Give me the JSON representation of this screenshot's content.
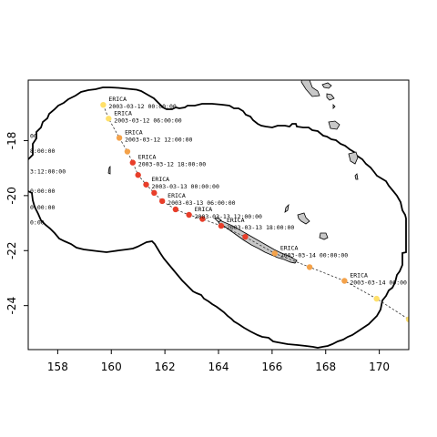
{
  "map": {
    "x_ticks": [
      "158",
      "160",
      "162",
      "164",
      "166",
      "168",
      "170"
    ],
    "y_ticks": [
      "-18",
      "-20",
      "-22",
      "-24"
    ],
    "x_tick_values": [
      158,
      160,
      162,
      164,
      166,
      168,
      170
    ],
    "y_tick_values": [
      -18,
      -20,
      -22,
      -24
    ],
    "xlim": [
      156.9,
      171.1
    ],
    "ylim": [
      -25.6,
      -15.8
    ],
    "colors": {
      "boundary": "#000000",
      "land": "#c8c8c8",
      "track": "#333333",
      "point_strong": "#e83e2a",
      "point_mid": "#f4a24a",
      "point_weak": "#ffe06a"
    }
  },
  "chart_data": {
    "type": "scatter",
    "title": "",
    "xlabel": "",
    "ylabel": "",
    "storm_name": "ERICA",
    "track": [
      {
        "lon": 159.7,
        "lat": -16.7,
        "level": "weak",
        "label": "2003-03-12 00:00:00",
        "name": "ERICA"
      },
      {
        "lon": 159.9,
        "lat": -17.2,
        "level": "weak",
        "label": "2003-03-12 06:00:00",
        "name": "ERICA"
      },
      {
        "lon": 160.3,
        "lat": -17.9,
        "level": "mid",
        "label": "2003-03-12 12:00:00",
        "name": "ERICA"
      },
      {
        "lon": 160.6,
        "lat": -18.4,
        "level": "mid",
        "label": "",
        "name": ""
      },
      {
        "lon": 160.8,
        "lat": -18.8,
        "level": "strong",
        "label": "2003-03-12 18:00:00",
        "name": "ERICA"
      },
      {
        "lon": 161.0,
        "lat": -19.25,
        "level": "strong",
        "label": "",
        "name": ""
      },
      {
        "lon": 161.3,
        "lat": -19.6,
        "level": "strong",
        "label": "2003-03-13 00:00:00",
        "name": "ERICA"
      },
      {
        "lon": 161.6,
        "lat": -19.9,
        "level": "strong",
        "label": "",
        "name": ""
      },
      {
        "lon": 161.9,
        "lat": -20.2,
        "level": "strong",
        "label": "2003-03-13 06:00:00",
        "name": "ERICA"
      },
      {
        "lon": 162.4,
        "lat": -20.5,
        "level": "strong",
        "label": "",
        "name": ""
      },
      {
        "lon": 162.9,
        "lat": -20.7,
        "level": "strong",
        "label": "2003-03-13 12:00:00",
        "name": "ERICA"
      },
      {
        "lon": 163.4,
        "lat": -20.85,
        "level": "strong",
        "label": "",
        "name": ""
      },
      {
        "lon": 164.1,
        "lat": -21.1,
        "level": "strong",
        "label": "2003-03-13 18:00:00",
        "name": "ERICA"
      },
      {
        "lon": 165.0,
        "lat": -21.5,
        "level": "strong",
        "label": "",
        "name": ""
      },
      {
        "lon": 166.1,
        "lat": -22.1,
        "level": "mid",
        "label": "2003-03-14 00:00:00",
        "name": "ERICA"
      },
      {
        "lon": 167.4,
        "lat": -22.6,
        "level": "mid",
        "label": "",
        "name": ""
      },
      {
        "lon": 168.7,
        "lat": -23.1,
        "level": "mid",
        "label": "2003-03-14 06:00:00",
        "name": "ERICA"
      },
      {
        "lon": 169.9,
        "lat": -23.75,
        "level": "weak",
        "label": "",
        "name": ""
      },
      {
        "lon": 171.1,
        "lat": -24.5,
        "level": "weak",
        "label": "",
        "name": ""
      }
    ],
    "left_edge_labels": [
      {
        "lat": -17.9,
        "text": "00"
      },
      {
        "lat": -18.45,
        "text": "8:00:00"
      },
      {
        "lat": -19.2,
        "text": "3:12:00:00"
      },
      {
        "lat": -19.9,
        "text": "0:00:00"
      },
      {
        "lat": -20.5,
        "text": "0:00:00"
      },
      {
        "lat": -21.05,
        "text": "0:00"
      }
    ]
  }
}
